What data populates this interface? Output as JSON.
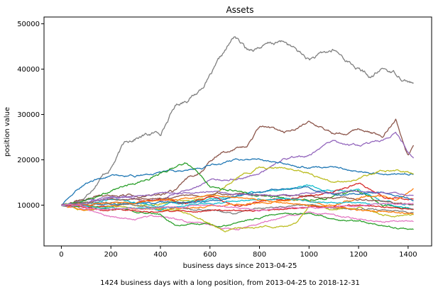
{
  "chart_data": {
    "type": "line",
    "title": "Assets",
    "xlabel": "business days since 2013-04-25",
    "ylabel": "position value",
    "caption": "1424 business days with a long position, from 2013-04-25 to 2018-12-31",
    "xlim": [
      -70,
      1495
    ],
    "ylim": [
      1000,
      51500
    ],
    "xticks": [
      0,
      200,
      400,
      600,
      800,
      1000,
      1200,
      1400
    ],
    "yticks": [
      10000,
      20000,
      30000,
      40000,
      50000
    ],
    "x_end": 1424,
    "grid": false,
    "legend": "none",
    "series": [
      {
        "color": "#7f7f7f",
        "start": 10000,
        "noise": 550,
        "anchors": [
          [
            0,
            10000
          ],
          [
            100,
            12000
          ],
          [
            150,
            16000
          ],
          [
            200,
            18500
          ],
          [
            260,
            24000
          ],
          [
            300,
            25000
          ],
          [
            340,
            25500
          ],
          [
            400,
            26000
          ],
          [
            460,
            32000
          ],
          [
            550,
            35000
          ],
          [
            620,
            40000
          ],
          [
            700,
            47000
          ],
          [
            750,
            44000
          ],
          [
            800,
            45000
          ],
          [
            900,
            46000
          ],
          [
            1000,
            42000
          ],
          [
            1100,
            44000
          ],
          [
            1200,
            40000
          ],
          [
            1250,
            38000
          ],
          [
            1300,
            40000
          ],
          [
            1350,
            39000
          ],
          [
            1424,
            37000
          ]
        ]
      },
      {
        "color": "#8c564b",
        "start": 10000,
        "noise": 350,
        "anchors": [
          [
            0,
            10000
          ],
          [
            150,
            12500
          ],
          [
            300,
            12000
          ],
          [
            450,
            13000
          ],
          [
            550,
            17000
          ],
          [
            650,
            22000
          ],
          [
            750,
            23000
          ],
          [
            800,
            27000
          ],
          [
            900,
            26000
          ],
          [
            1000,
            28000
          ],
          [
            1100,
            26000
          ],
          [
            1200,
            27000
          ],
          [
            1300,
            25000
          ],
          [
            1350,
            29000
          ],
          [
            1400,
            21000
          ],
          [
            1424,
            23000
          ]
        ]
      },
      {
        "color": "#9467bd",
        "start": 10000,
        "noise": 300,
        "anchors": [
          [
            0,
            10000
          ],
          [
            200,
            12000
          ],
          [
            400,
            11000
          ],
          [
            600,
            15000
          ],
          [
            800,
            17000
          ],
          [
            900,
            20000
          ],
          [
            1000,
            21000
          ],
          [
            1100,
            24000
          ],
          [
            1200,
            23000
          ],
          [
            1300,
            24000
          ],
          [
            1350,
            26000
          ],
          [
            1424,
            20000
          ]
        ]
      },
      {
        "color": "#1f77b4",
        "start": 10000,
        "noise": 250,
        "anchors": [
          [
            0,
            10000
          ],
          [
            100,
            15000
          ],
          [
            200,
            16500
          ],
          [
            300,
            16500
          ],
          [
            400,
            17000
          ],
          [
            500,
            17500
          ],
          [
            600,
            18500
          ],
          [
            700,
            20000
          ],
          [
            800,
            20000
          ],
          [
            900,
            19500
          ],
          [
            1000,
            18500
          ],
          [
            1100,
            18000
          ],
          [
            1200,
            17500
          ],
          [
            1300,
            17000
          ],
          [
            1424,
            17000
          ]
        ]
      },
      {
        "color": "#bcbd22",
        "start": 10000,
        "noise": 300,
        "anchors": [
          [
            0,
            10000
          ],
          [
            100,
            9000
          ],
          [
            200,
            10000
          ],
          [
            400,
            10500
          ],
          [
            600,
            12000
          ],
          [
            700,
            16000
          ],
          [
            800,
            18500
          ],
          [
            900,
            18000
          ],
          [
            1000,
            17000
          ],
          [
            1100,
            15000
          ],
          [
            1200,
            16000
          ],
          [
            1300,
            18000
          ],
          [
            1424,
            17000
          ]
        ]
      },
      {
        "color": "#17becf",
        "start": 10000,
        "noise": 250,
        "anchors": [
          [
            0,
            10000
          ],
          [
            200,
            11000
          ],
          [
            400,
            10000
          ],
          [
            600,
            11000
          ],
          [
            800,
            13000
          ],
          [
            900,
            13500
          ],
          [
            1000,
            14500
          ],
          [
            1100,
            13000
          ],
          [
            1200,
            13500
          ],
          [
            1300,
            11000
          ],
          [
            1424,
            10000
          ]
        ]
      },
      {
        "color": "#2ca02c",
        "start": 10000,
        "noise": 300,
        "anchors": [
          [
            0,
            10000
          ],
          [
            100,
            11000
          ],
          [
            200,
            13000
          ],
          [
            300,
            15000
          ],
          [
            400,
            17000
          ],
          [
            500,
            19000
          ],
          [
            540,
            18000
          ],
          [
            600,
            14000
          ],
          [
            700,
            13000
          ],
          [
            800,
            12000
          ],
          [
            1000,
            11000
          ],
          [
            1100,
            12000
          ],
          [
            1200,
            13000
          ],
          [
            1300,
            10000
          ],
          [
            1424,
            9000
          ]
        ]
      },
      {
        "color": "#d62728",
        "start": 10000,
        "noise": 250,
        "anchors": [
          [
            0,
            10000
          ],
          [
            150,
            9500
          ],
          [
            300,
            10500
          ],
          [
            400,
            11000
          ],
          [
            500,
            10000
          ],
          [
            600,
            11500
          ],
          [
            700,
            10000
          ],
          [
            800,
            11000
          ],
          [
            1000,
            12000
          ],
          [
            1100,
            13000
          ],
          [
            1200,
            15000
          ],
          [
            1300,
            12000
          ],
          [
            1424,
            11000
          ]
        ]
      },
      {
        "color": "#ff7f0e",
        "start": 10000,
        "noise": 250,
        "anchors": [
          [
            0,
            10000
          ],
          [
            100,
            9000
          ],
          [
            200,
            9500
          ],
          [
            400,
            9000
          ],
          [
            600,
            10000
          ],
          [
            800,
            10500
          ],
          [
            1000,
            11000
          ],
          [
            1100,
            10000
          ],
          [
            1200,
            11500
          ],
          [
            1300,
            12000
          ],
          [
            1350,
            11000
          ],
          [
            1424,
            13500
          ]
        ]
      },
      {
        "color": "#e377c2",
        "start": 10000,
        "noise": 220,
        "anchors": [
          [
            0,
            10000
          ],
          [
            100,
            9000
          ],
          [
            200,
            7500
          ],
          [
            300,
            7000
          ],
          [
            400,
            7500
          ],
          [
            500,
            6500
          ],
          [
            600,
            5500
          ],
          [
            700,
            4500
          ],
          [
            800,
            6000
          ],
          [
            900,
            7500
          ],
          [
            1000,
            8500
          ],
          [
            1100,
            8000
          ],
          [
            1200,
            7000
          ],
          [
            1300,
            6500
          ],
          [
            1424,
            6000
          ]
        ]
      },
      {
        "color": "#2ca02c",
        "start": 10000,
        "noise": 220,
        "anchors": [
          [
            0,
            10000
          ],
          [
            100,
            9500
          ],
          [
            200,
            9000
          ],
          [
            400,
            8000
          ],
          [
            460,
            5500
          ],
          [
            550,
            6000
          ],
          [
            650,
            5500
          ],
          [
            750,
            6500
          ],
          [
            850,
            8000
          ],
          [
            1000,
            8000
          ],
          [
            1100,
            7000
          ],
          [
            1200,
            6500
          ],
          [
            1300,
            5500
          ],
          [
            1424,
            4500
          ]
        ]
      },
      {
        "color": "#bcbd22",
        "start": 10000,
        "noise": 220,
        "anchors": [
          [
            0,
            10000
          ],
          [
            200,
            9500
          ],
          [
            400,
            9000
          ],
          [
            500,
            8500
          ],
          [
            600,
            6000
          ],
          [
            660,
            4500
          ],
          [
            700,
            5000
          ],
          [
            800,
            5000
          ],
          [
            900,
            5500
          ],
          [
            950,
            6000
          ],
          [
            1000,
            10000
          ],
          [
            1100,
            9000
          ],
          [
            1200,
            9500
          ],
          [
            1300,
            8000
          ],
          [
            1424,
            7500
          ]
        ]
      },
      {
        "color": "#1f77b4",
        "start": 10000,
        "noise": 220,
        "anchors": [
          [
            0,
            10000
          ],
          [
            200,
            10000
          ],
          [
            400,
            10500
          ],
          [
            600,
            11000
          ],
          [
            800,
            13000
          ],
          [
            1000,
            14000
          ],
          [
            1100,
            12000
          ],
          [
            1200,
            12500
          ],
          [
            1300,
            13000
          ],
          [
            1424,
            11000
          ]
        ]
      },
      {
        "color": "#7f7f7f",
        "start": 10000,
        "noise": 220,
        "anchors": [
          [
            0,
            10000
          ],
          [
            200,
            10500
          ],
          [
            400,
            9500
          ],
          [
            600,
            9000
          ],
          [
            700,
            8000
          ],
          [
            800,
            9500
          ],
          [
            1000,
            10000
          ],
          [
            1200,
            9000
          ],
          [
            1424,
            8500
          ]
        ]
      },
      {
        "color": "#8c564b",
        "start": 10000,
        "noise": 220,
        "anchors": [
          [
            0,
            10000
          ],
          [
            150,
            11000
          ],
          [
            300,
            11500
          ],
          [
            500,
            12000
          ],
          [
            700,
            12500
          ],
          [
            900,
            12000
          ],
          [
            1100,
            11500
          ],
          [
            1300,
            11000
          ],
          [
            1424,
            10000
          ]
        ]
      },
      {
        "color": "#17becf",
        "start": 10000,
        "noise": 220,
        "anchors": [
          [
            0,
            10000
          ],
          [
            200,
            9500
          ],
          [
            400,
            9000
          ],
          [
            600,
            10500
          ],
          [
            800,
            11500
          ],
          [
            1000,
            11000
          ],
          [
            1200,
            10500
          ],
          [
            1424,
            9500
          ]
        ]
      },
      {
        "color": "#ff7f0e",
        "start": 10000,
        "noise": 200,
        "anchors": [
          [
            0,
            10000
          ],
          [
            200,
            10500
          ],
          [
            400,
            11000
          ],
          [
            600,
            12000
          ],
          [
            800,
            11000
          ],
          [
            1000,
            10000
          ],
          [
            1200,
            9000
          ],
          [
            1424,
            8000
          ]
        ]
      },
      {
        "color": "#d62728",
        "start": 10000,
        "noise": 200,
        "anchors": [
          [
            0,
            10000
          ],
          [
            200,
            9000
          ],
          [
            400,
            8500
          ],
          [
            600,
            8500
          ],
          [
            800,
            9000
          ],
          [
            1000,
            9500
          ],
          [
            1200,
            10000
          ],
          [
            1424,
            9000
          ]
        ]
      },
      {
        "color": "#9467bd",
        "start": 10000,
        "noise": 200,
        "anchors": [
          [
            0,
            10000
          ],
          [
            200,
            11500
          ],
          [
            400,
            12500
          ],
          [
            600,
            13000
          ],
          [
            800,
            12000
          ],
          [
            1000,
            12500
          ],
          [
            1200,
            13000
          ],
          [
            1424,
            12000
          ]
        ]
      },
      {
        "color": "#e377c2",
        "start": 10000,
        "noise": 200,
        "anchors": [
          [
            0,
            10000
          ],
          [
            200,
            9000
          ],
          [
            400,
            9500
          ],
          [
            600,
            10000
          ],
          [
            800,
            9000
          ],
          [
            1000,
            9500
          ],
          [
            1200,
            10000
          ],
          [
            1424,
            10500
          ]
        ]
      }
    ]
  }
}
